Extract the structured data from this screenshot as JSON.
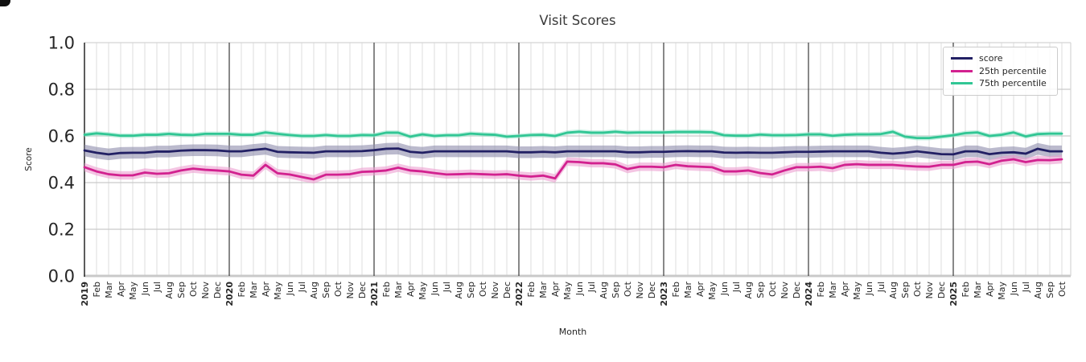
{
  "chart_data": {
    "type": "line",
    "title": "Visit Scores",
    "xlabel": "Month",
    "ylabel": "Score",
    "ylim": [
      0.0,
      1.0
    ],
    "yticks": [
      0.0,
      0.2,
      0.4,
      0.6,
      0.8,
      1.0
    ],
    "grid": true,
    "legend_position": "upper right",
    "axis_colors": {
      "tick_label": "#262626",
      "title": "#3a3a3a",
      "month_gridline": "#dedede",
      "y_gridline": "#c9c9c9",
      "year_divider": "#3a3a3a",
      "left_spine": "#262626",
      "top_spine": "#d4d4d4"
    },
    "x": [
      "2019",
      "Feb",
      "Mar",
      "Apr",
      "May",
      "Jun",
      "Jul",
      "Aug",
      "Sep",
      "Oct",
      "Nov",
      "Dec",
      "2020",
      "Feb",
      "Mar",
      "Apr",
      "May",
      "Jun",
      "Jul",
      "Aug",
      "Sep",
      "Oct",
      "Nov",
      "Dec",
      "2021",
      "Feb",
      "Mar",
      "Apr",
      "May",
      "Jun",
      "Jul",
      "Aug",
      "Sep",
      "Oct",
      "Nov",
      "Dec",
      "2022",
      "Feb",
      "Mar",
      "Apr",
      "May",
      "Jun",
      "Jul",
      "Aug",
      "Sep",
      "Oct",
      "Nov",
      "Dec",
      "2023",
      "Feb",
      "Mar",
      "Apr",
      "May",
      "Jun",
      "Jul",
      "Aug",
      "Sep",
      "Oct",
      "Nov",
      "Dec",
      "2024",
      "Feb",
      "Mar",
      "Apr",
      "May",
      "Jun",
      "Jul",
      "Aug",
      "Sep",
      "Oct",
      "Nov",
      "Dec",
      "2025",
      "Feb",
      "Mar",
      "Apr",
      "May",
      "Jun",
      "Jul",
      "Aug",
      "Sep",
      "Oct"
    ],
    "series": [
      {
        "name": "score",
        "color": "#222064",
        "band_color": "#8e8cab",
        "band": 0.025,
        "values": [
          0.538,
          0.528,
          0.521,
          0.527,
          0.528,
          0.528,
          0.533,
          0.533,
          0.537,
          0.539,
          0.539,
          0.538,
          0.534,
          0.534,
          0.54,
          0.545,
          0.532,
          0.53,
          0.529,
          0.528,
          0.534,
          0.534,
          0.534,
          0.535,
          0.539,
          0.545,
          0.546,
          0.532,
          0.528,
          0.534,
          0.534,
          0.534,
          0.534,
          0.534,
          0.534,
          0.534,
          0.53,
          0.53,
          0.532,
          0.53,
          0.534,
          0.534,
          0.534,
          0.534,
          0.534,
          0.53,
          0.53,
          0.532,
          0.532,
          0.534,
          0.535,
          0.534,
          0.534,
          0.529,
          0.528,
          0.529,
          0.528,
          0.528,
          0.53,
          0.532,
          0.532,
          0.533,
          0.534,
          0.534,
          0.534,
          0.534,
          0.528,
          0.524,
          0.528,
          0.534,
          0.528,
          0.522,
          0.521,
          0.534,
          0.534,
          0.522,
          0.528,
          0.53,
          0.524,
          0.545,
          0.534,
          0.534
        ]
      },
      {
        "name": "25th percentile",
        "color": "#d2218f",
        "band_color": "#ec9ed1",
        "band": 0.018,
        "values": [
          0.466,
          0.448,
          0.436,
          0.431,
          0.431,
          0.443,
          0.438,
          0.44,
          0.452,
          0.46,
          0.455,
          0.452,
          0.448,
          0.434,
          0.43,
          0.476,
          0.44,
          0.435,
          0.424,
          0.414,
          0.434,
          0.434,
          0.436,
          0.446,
          0.448,
          0.452,
          0.464,
          0.452,
          0.448,
          0.441,
          0.435,
          0.436,
          0.438,
          0.436,
          0.434,
          0.436,
          0.43,
          0.426,
          0.43,
          0.418,
          0.49,
          0.488,
          0.483,
          0.483,
          0.478,
          0.458,
          0.468,
          0.468,
          0.466,
          0.476,
          0.47,
          0.468,
          0.466,
          0.448,
          0.448,
          0.452,
          0.441,
          0.435,
          0.452,
          0.466,
          0.466,
          0.468,
          0.462,
          0.476,
          0.479,
          0.476,
          0.476,
          0.476,
          0.472,
          0.469,
          0.468,
          0.476,
          0.476,
          0.488,
          0.49,
          0.479,
          0.494,
          0.5,
          0.488,
          0.497,
          0.496,
          0.5
        ]
      },
      {
        "name": "75th percentile",
        "color": "#31c694",
        "band_color": "#a5e8d0",
        "band": 0.01,
        "values": [
          0.605,
          0.611,
          0.607,
          0.601,
          0.601,
          0.605,
          0.605,
          0.609,
          0.605,
          0.604,
          0.609,
          0.609,
          0.609,
          0.605,
          0.605,
          0.615,
          0.609,
          0.604,
          0.6,
          0.6,
          0.604,
          0.6,
          0.6,
          0.604,
          0.603,
          0.614,
          0.614,
          0.597,
          0.607,
          0.6,
          0.603,
          0.603,
          0.61,
          0.607,
          0.605,
          0.597,
          0.6,
          0.604,
          0.605,
          0.6,
          0.614,
          0.618,
          0.614,
          0.614,
          0.618,
          0.614,
          0.615,
          0.615,
          0.615,
          0.617,
          0.617,
          0.617,
          0.616,
          0.603,
          0.601,
          0.601,
          0.606,
          0.603,
          0.603,
          0.604,
          0.607,
          0.607,
          0.601,
          0.605,
          0.607,
          0.607,
          0.608,
          0.618,
          0.597,
          0.591,
          0.591,
          0.597,
          0.603,
          0.612,
          0.615,
          0.6,
          0.605,
          0.615,
          0.598,
          0.608,
          0.61,
          0.61
        ]
      }
    ]
  }
}
